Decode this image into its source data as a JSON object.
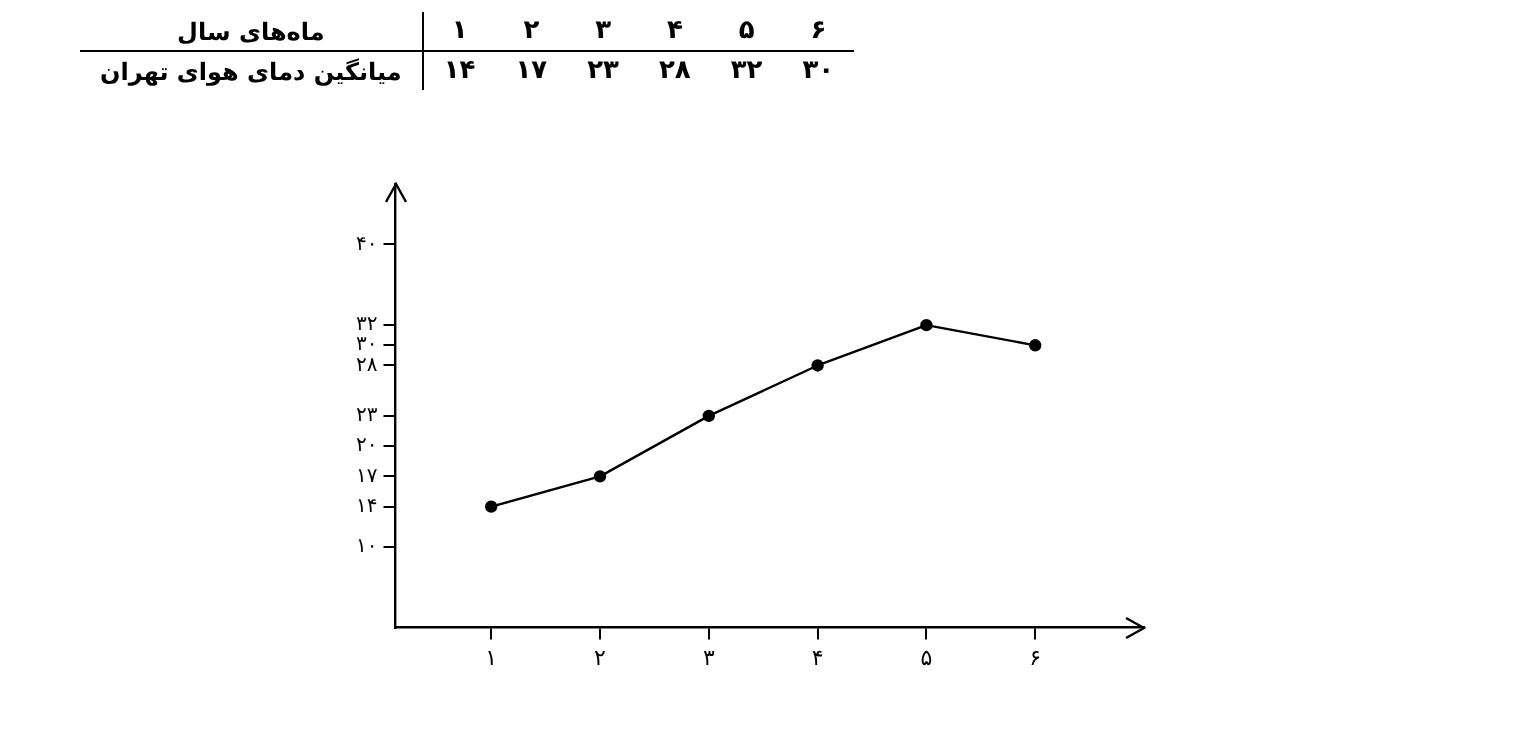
{
  "chart_data": {
    "type": "line",
    "annotations": [
      "ماه‌های سال",
      "میانگین دمای هوای تهران"
    ],
    "categories": [
      "۱",
      "۲",
      "۳",
      "۴",
      "۵",
      "۶"
    ],
    "series": [
      {
        "color": "#000000",
        "values": [
          14,
          17,
          23,
          28,
          32,
          30
        ]
      }
    ],
    "value_labels": [
      "۱۴",
      "۱۷",
      "۲۳",
      "۲۸",
      "۳۲",
      "۳۰"
    ],
    "ylim": [
      2,
      46
    ],
    "yticks": [
      {
        "value": 10,
        "label": "۱۰"
      },
      {
        "value": 14,
        "label": "۱۴"
      },
      {
        "value": 17,
        "label": "۱۷"
      },
      {
        "value": 20,
        "label": "۲۰"
      },
      {
        "value": 23,
        "label": "۲۳"
      },
      {
        "value": 28,
        "label": "۲۸"
      },
      {
        "value": 30,
        "label": "۳۰"
      },
      {
        "value": 32,
        "label": "۳۲"
      },
      {
        "value": 40,
        "label": "۴۰"
      }
    ],
    "grid": false,
    "legend": false,
    "marker": "circle",
    "line_style": "solid"
  }
}
